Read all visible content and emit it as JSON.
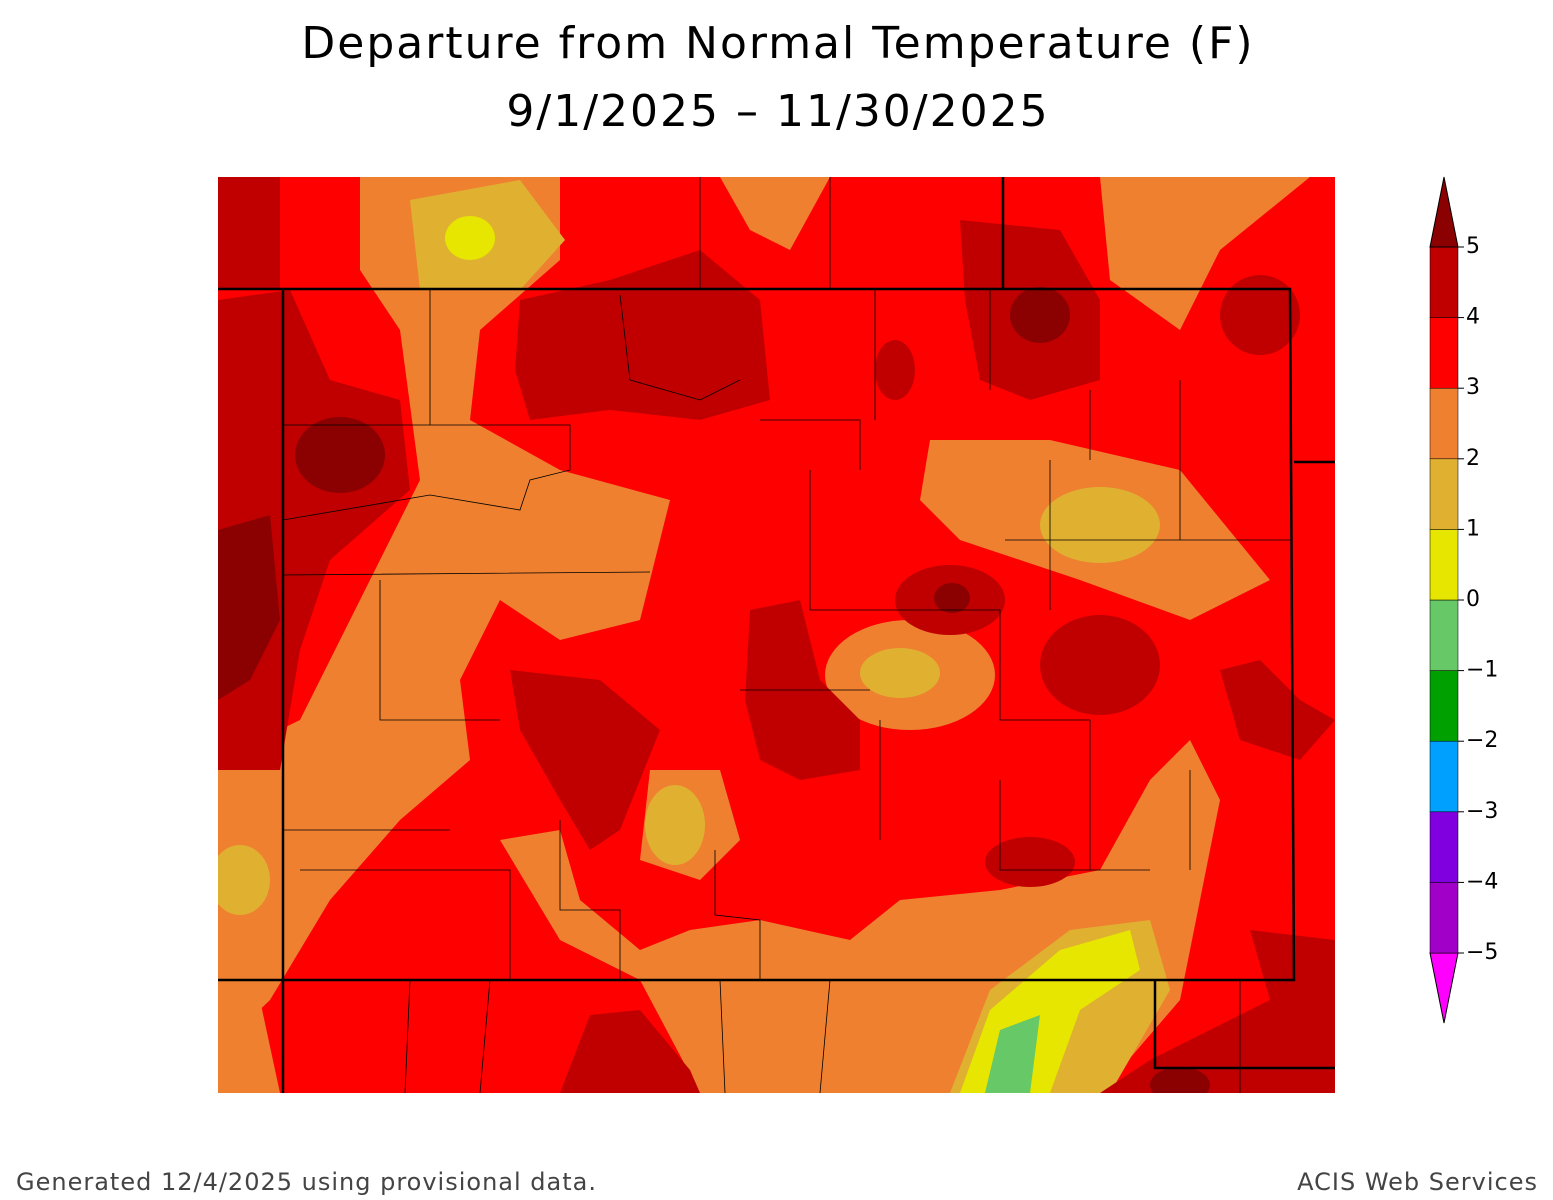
{
  "header": {
    "title": "Departure from Normal Temperature (F)",
    "subtitle": "9/1/2025 – 11/30/2025"
  },
  "legend": {
    "levels": [
      {
        "value": -5,
        "label": "−5"
      },
      {
        "value": -4,
        "label": "−4"
      },
      {
        "value": -3,
        "label": "−3"
      },
      {
        "value": -2,
        "label": "−2"
      },
      {
        "value": -1,
        "label": "−1"
      },
      0,
      1,
      2,
      3,
      4,
      5
    ],
    "colors": [
      "#ff00ff",
      "#a000c8",
      "#8000e0",
      "#00a0ff",
      "#00a000",
      "#66c866",
      "#e6e600",
      "#e0b030",
      "#ee8030",
      "#ff0000",
      "#c00000",
      "#8b0000"
    ]
  },
  "footer": {
    "left": "Generated 12/4/2025 using provisional data.",
    "right": "ACIS Web Services"
  }
}
